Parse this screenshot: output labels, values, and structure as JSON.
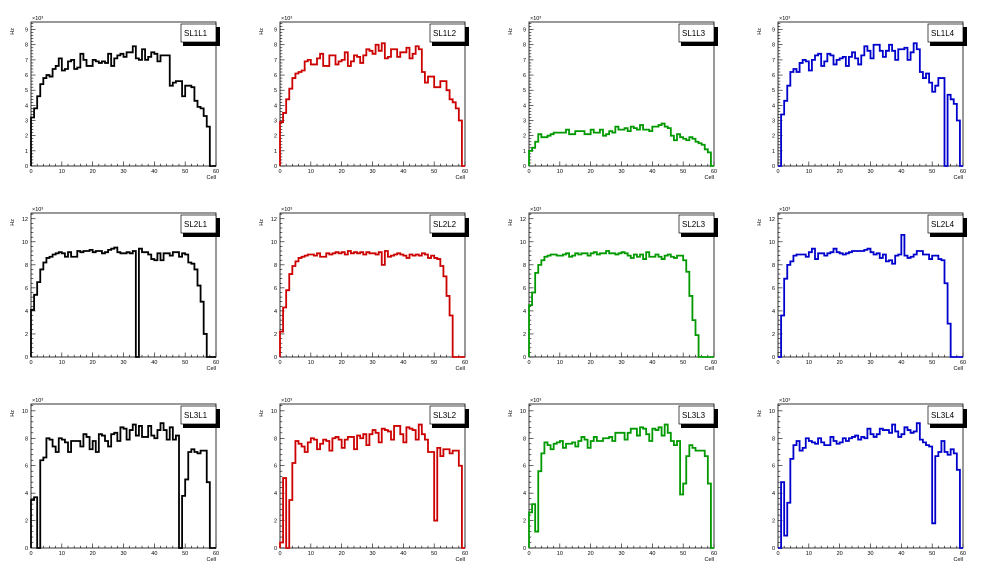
{
  "chart_data": [
    {
      "type": "bar",
      "title": "SL1L1",
      "color": "#000000",
      "xlabel": "Cell",
      "ylabel": "Hz",
      "exponent": "×10³",
      "xlim": [
        0,
        60
      ],
      "ylim": [
        0,
        9.5
      ],
      "xticks": [
        "0",
        "10",
        "20",
        "30",
        "40",
        "50",
        "60"
      ],
      "yticks": [
        "0",
        "1",
        "2",
        "3",
        "4",
        "5",
        "6",
        "7",
        "8",
        "9"
      ],
      "values": [
        3.2,
        3.8,
        4.6,
        5.4,
        5.8,
        6.0,
        5.9,
        6.4,
        6.6,
        7.1,
        6.3,
        6.4,
        6.9,
        7.0,
        6.4,
        6.5,
        7.4,
        7.0,
        6.6,
        6.6,
        7.0,
        6.9,
        6.8,
        6.9,
        6.8,
        7.4,
        6.6,
        7.1,
        7.3,
        7.4,
        7.2,
        7.5,
        7.5,
        7.9,
        7.1,
        7.0,
        7.7,
        7.0,
        7.2,
        7.5,
        7.4,
        6.9,
        7.3,
        7.3,
        7.3,
        5.3,
        5.5,
        5.6,
        5.6,
        4.6,
        5.3,
        5.3,
        5.2,
        4.3,
        3.9,
        3.8,
        3.3,
        2.6,
        0,
        0
      ]
    },
    {
      "type": "bar",
      "title": "SL1L2",
      "color": "#cc0000",
      "xlabel": "Cell",
      "ylabel": "Hz",
      "exponent": "×10³",
      "xlim": [
        0,
        60
      ],
      "ylim": [
        0,
        9.5
      ],
      "xticks": [
        "0",
        "10",
        "20",
        "30",
        "40",
        "50",
        "60"
      ],
      "yticks": [
        "0",
        "1",
        "2",
        "3",
        "4",
        "5",
        "6",
        "7",
        "8",
        "9"
      ],
      "values": [
        2.9,
        3.5,
        4.4,
        5.1,
        5.8,
        6.1,
        6.2,
        6.3,
        6.9,
        7.0,
        6.7,
        6.7,
        7.1,
        7.4,
        6.6,
        6.6,
        7.3,
        7.3,
        6.7,
        6.9,
        7.0,
        7.5,
        6.6,
        6.9,
        7.3,
        7.2,
        6.8,
        7.3,
        7.7,
        7.6,
        7.4,
        8.0,
        7.6,
        8.1,
        7.1,
        7.2,
        7.7,
        7.7,
        7.2,
        7.5,
        7.5,
        7.8,
        7.1,
        7.4,
        7.9,
        7.7,
        6.2,
        5.5,
        5.9,
        5.9,
        5.2,
        5.2,
        5.6,
        5.6,
        5.0,
        4.4,
        4.2,
        3.8,
        3.0,
        0
      ]
    },
    {
      "type": "bar",
      "title": "SL1L3",
      "color": "#009900",
      "xlabel": "Cell",
      "ylabel": "Hz",
      "exponent": "×10³",
      "xlim": [
        0,
        60
      ],
      "ylim": [
        0,
        9.5
      ],
      "xticks": [
        "0",
        "10",
        "20",
        "30",
        "40",
        "50",
        "60"
      ],
      "yticks": [
        "0",
        "1",
        "2",
        "3",
        "4",
        "5",
        "6",
        "7",
        "8",
        "9"
      ],
      "values": [
        1.0,
        1.2,
        1.6,
        2.1,
        1.9,
        1.9,
        2.0,
        2.1,
        2.2,
        2.2,
        2.2,
        2.2,
        2.4,
        2.1,
        2.1,
        2.3,
        2.3,
        2.3,
        2.1,
        2.1,
        2.4,
        2.2,
        2.2,
        2.4,
        2.0,
        2.1,
        2.3,
        2.2,
        2.6,
        2.4,
        2.4,
        2.5,
        2.3,
        2.6,
        2.5,
        2.4,
        2.7,
        2.4,
        2.4,
        2.3,
        2.6,
        2.6,
        2.7,
        2.8,
        2.6,
        2.5,
        2.0,
        1.7,
        2.1,
        1.9,
        1.8,
        1.7,
        1.9,
        1.8,
        1.6,
        1.5,
        1.4,
        1.1,
        0.9,
        0
      ]
    },
    {
      "type": "bar",
      "title": "SL1L4",
      "color": "#0000cc",
      "xlabel": "Cell",
      "ylabel": "Hz",
      "exponent": "×10³",
      "xlim": [
        0,
        60
      ],
      "ylim": [
        0,
        9.5
      ],
      "xticks": [
        "0",
        "10",
        "20",
        "30",
        "40",
        "50",
        "60"
      ],
      "yticks": [
        "0",
        "1",
        "2",
        "3",
        "4",
        "5",
        "6",
        "7",
        "8",
        "9"
      ],
      "values": [
        0,
        3.4,
        4.3,
        5.3,
        6.2,
        6.4,
        6.2,
        6.8,
        7.0,
        6.9,
        6.3,
        7.0,
        7.3,
        7.4,
        6.6,
        6.9,
        7.4,
        7.3,
        6.7,
        7.0,
        7.1,
        7.2,
        6.6,
        7.2,
        7.5,
        7.1,
        6.7,
        7.3,
        7.9,
        7.6,
        7.1,
        8.0,
        8.0,
        7.6,
        7.2,
        7.6,
        8.0,
        7.6,
        7.0,
        7.7,
        7.7,
        7.8,
        7.0,
        7.5,
        8.1,
        7.7,
        6.2,
        5.8,
        6.1,
        5.5,
        4.9,
        5.3,
        5.8,
        5.8,
        0,
        4.7,
        4.4,
        4.1,
        3.0,
        0
      ]
    },
    {
      "type": "bar",
      "title": "SL2L1",
      "color": "#000000",
      "xlabel": "Cell",
      "ylabel": "Hz",
      "exponent": "×10³",
      "xlim": [
        0,
        60
      ],
      "ylim": [
        0,
        12.5
      ],
      "xticks": [
        "0",
        "10",
        "20",
        "30",
        "40",
        "50",
        "60"
      ],
      "yticks": [
        "0",
        "2",
        "4",
        "6",
        "8",
        "10",
        "12"
      ],
      "values": [
        4.1,
        5.4,
        6.5,
        7.6,
        8.2,
        8.6,
        8.7,
        8.9,
        9.0,
        9.1,
        9.0,
        8.7,
        9.1,
        8.7,
        8.7,
        9.2,
        9.1,
        9.2,
        9.2,
        9.3,
        9.1,
        9.2,
        9.2,
        9.0,
        9.1,
        9.3,
        9.4,
        9.5,
        9.1,
        9.0,
        9.0,
        9.1,
        9.0,
        9.2,
        0,
        9.4,
        9.1,
        9.1,
        8.9,
        8.5,
        8.4,
        9.0,
        8.4,
        9.0,
        9.0,
        8.8,
        9.1,
        9.1,
        8.7,
        9.0,
        8.9,
        8.2,
        8.1,
        7.6,
        6.2,
        4.8,
        2.0,
        0,
        0,
        0
      ]
    },
    {
      "type": "bar",
      "title": "SL2L2",
      "color": "#cc0000",
      "xlabel": "Cell",
      "ylabel": "Hz",
      "exponent": "×10³",
      "xlim": [
        0,
        60
      ],
      "ylim": [
        0,
        12.5
      ],
      "xticks": [
        "0",
        "10",
        "20",
        "30",
        "40",
        "50",
        "60"
      ],
      "yticks": [
        "0",
        "2",
        "4",
        "6",
        "8",
        "10",
        "12"
      ],
      "values": [
        2.2,
        4.3,
        5.8,
        7.2,
        7.9,
        8.3,
        8.6,
        8.7,
        8.8,
        8.9,
        8.9,
        8.8,
        9.0,
        8.7,
        8.7,
        9.0,
        8.9,
        9.0,
        9.1,
        9.0,
        9.1,
        8.9,
        9.2,
        9.0,
        9.1,
        9.0,
        9.1,
        8.9,
        9.1,
        9.0,
        9.0,
        8.9,
        9.1,
        8.0,
        9.2,
        8.7,
        8.8,
        8.9,
        9.0,
        8.9,
        8.8,
        8.6,
        8.9,
        8.8,
        8.9,
        8.8,
        9.0,
        8.9,
        8.6,
        8.8,
        8.6,
        8.5,
        7.9,
        7.0,
        5.3,
        3.6,
        0,
        0,
        0,
        0
      ]
    },
    {
      "type": "bar",
      "title": "SL2L3",
      "color": "#009900",
      "xlabel": "Cell",
      "ylabel": "Hz",
      "exponent": "×10³",
      "xlim": [
        0,
        60
      ],
      "ylim": [
        0,
        12.5
      ],
      "xticks": [
        "0",
        "10",
        "20",
        "30",
        "40",
        "50",
        "60"
      ],
      "yticks": [
        "0",
        "2",
        "4",
        "6",
        "8",
        "10",
        "12"
      ],
      "values": [
        4.5,
        5.6,
        7.3,
        8.0,
        8.4,
        8.7,
        8.8,
        8.9,
        8.9,
        8.8,
        8.8,
        8.9,
        9.0,
        8.7,
        8.8,
        9.0,
        8.9,
        9.0,
        9.0,
        8.8,
        9.0,
        9.1,
        8.9,
        9.0,
        9.0,
        9.2,
        9.0,
        9.0,
        8.9,
        9.0,
        9.1,
        9.0,
        8.8,
        8.6,
        8.9,
        8.7,
        8.9,
        8.5,
        9.1,
        8.7,
        8.7,
        8.9,
        8.7,
        8.5,
        8.8,
        8.9,
        8.7,
        8.6,
        8.8,
        8.8,
        8.4,
        7.4,
        5.3,
        3.2,
        1.9,
        0,
        0,
        0,
        0,
        0
      ]
    },
    {
      "type": "bar",
      "title": "SL2L4",
      "color": "#0000cc",
      "xlabel": "Cell",
      "ylabel": "Hz",
      "exponent": "×10³",
      "xlim": [
        0,
        60
      ],
      "ylim": [
        0,
        12.5
      ],
      "xticks": [
        "0",
        "10",
        "20",
        "30",
        "40",
        "50",
        "60"
      ],
      "yticks": [
        "0",
        "2",
        "4",
        "6",
        "8",
        "10",
        "12"
      ],
      "values": [
        0,
        3.6,
        6.8,
        8.0,
        8.3,
        8.8,
        8.9,
        8.9,
        8.9,
        8.7,
        9.1,
        9.4,
        8.5,
        9.0,
        9.0,
        8.8,
        9.0,
        9.1,
        9.4,
        9.1,
        9.0,
        8.9,
        9.0,
        9.1,
        9.2,
        9.2,
        9.2,
        9.2,
        9.3,
        9.4,
        9.1,
        8.9,
        9.0,
        8.6,
        8.9,
        8.3,
        8.4,
        8.1,
        8.8,
        8.9,
        10.6,
        8.8,
        8.6,
        8.7,
        8.9,
        9.2,
        9.2,
        8.9,
        8.9,
        8.5,
        8.8,
        8.8,
        8.5,
        8.4,
        6.4,
        2.9,
        0,
        0,
        0,
        0
      ]
    },
    {
      "type": "bar",
      "title": "SL3L1",
      "color": "#000000",
      "xlabel": "Cell",
      "ylabel": "Hz",
      "exponent": "×10³",
      "xlim": [
        0,
        60
      ],
      "ylim": [
        0,
        10.5
      ],
      "xticks": [
        "0",
        "10",
        "20",
        "30",
        "40",
        "50",
        "60"
      ],
      "yticks": [
        "0",
        "2",
        "4",
        "6",
        "8",
        "10"
      ],
      "values": [
        3.5,
        3.7,
        0,
        6.4,
        6.6,
        8.0,
        7.9,
        7.4,
        7.0,
        8.0,
        7.9,
        7.7,
        7.0,
        7.8,
        7.8,
        7.8,
        7.4,
        8.3,
        8.1,
        7.2,
        7.8,
        7.0,
        8.3,
        8.2,
        7.8,
        7.4,
        8.3,
        8.4,
        7.8,
        8.8,
        8.7,
        7.9,
        8.6,
        9.0,
        8.2,
        8.9,
        8.1,
        8.1,
        8.9,
        8.2,
        8.0,
        8.6,
        9.1,
        8.6,
        7.9,
        8.8,
        7.9,
        8.2,
        0,
        3.8,
        5.0,
        7.0,
        7.2,
        7.0,
        6.9,
        7.1,
        7.1,
        4.8,
        0,
        0
      ]
    },
    {
      "type": "bar",
      "title": "SL3L2",
      "color": "#cc0000",
      "xlabel": "Cell",
      "ylabel": "Hz",
      "exponent": "×10³",
      "xlim": [
        0,
        60
      ],
      "ylim": [
        0,
        10.5
      ],
      "xticks": [
        "0",
        "10",
        "20",
        "30",
        "40",
        "50",
        "60"
      ],
      "yticks": [
        "0",
        "2",
        "4",
        "6",
        "8",
        "10"
      ],
      "values": [
        0.4,
        5.1,
        0,
        3.5,
        6.2,
        7.8,
        7.6,
        7.4,
        7.0,
        7.7,
        8.0,
        7.9,
        7.2,
        7.6,
        7.9,
        7.8,
        7.1,
        8.0,
        8.1,
        7.9,
        7.3,
        7.9,
        8.1,
        8.1,
        7.2,
        8.2,
        8.0,
        8.3,
        7.5,
        8.3,
        8.6,
        8.4,
        7.7,
        8.7,
        8.6,
        8.5,
        7.9,
        8.9,
        8.9,
        8.3,
        7.7,
        8.8,
        8.7,
        8.6,
        7.9,
        9.0,
        8.3,
        7.9,
        7.0,
        7.0,
        2.0,
        7.3,
        6.7,
        7.2,
        7.2,
        6.9,
        7.1,
        7.1,
        6.0,
        0
      ]
    },
    {
      "type": "bar",
      "title": "SL3L3",
      "color": "#009900",
      "xlabel": "Cell",
      "ylabel": "Hz",
      "exponent": "×10³",
      "xlim": [
        0,
        60
      ],
      "ylim": [
        0,
        10.5
      ],
      "xticks": [
        "0",
        "10",
        "20",
        "30",
        "40",
        "50",
        "60"
      ],
      "yticks": [
        "0",
        "2",
        "4",
        "6",
        "8",
        "10"
      ],
      "values": [
        2.6,
        3.2,
        1.2,
        5.6,
        6.9,
        7.7,
        7.5,
        7.2,
        7.6,
        7.7,
        7.8,
        7.3,
        7.6,
        7.6,
        7.7,
        7.4,
        7.8,
        8.1,
        7.9,
        7.3,
        7.8,
        8.1,
        7.8,
        7.8,
        8.0,
        8.0,
        8.1,
        7.8,
        8.4,
        8.4,
        8.4,
        7.9,
        8.4,
        8.7,
        8.7,
        8.2,
        8.8,
        8.7,
        8.3,
        7.8,
        8.7,
        8.6,
        8.8,
        8.2,
        9.0,
        8.4,
        7.8,
        7.5,
        7.8,
        3.9,
        4.7,
        6.7,
        7.5,
        7.3,
        7.1,
        7.1,
        7.1,
        6.7,
        4.7,
        0
      ]
    },
    {
      "type": "bar",
      "title": "SL3L4",
      "color": "#0000cc",
      "xlabel": "Cell",
      "ylabel": "Hz",
      "exponent": "×10³",
      "xlim": [
        0,
        60
      ],
      "ylim": [
        0,
        10.5
      ],
      "xticks": [
        "0",
        "10",
        "20",
        "30",
        "40",
        "50",
        "60"
      ],
      "yticks": [
        "0",
        "2",
        "4",
        "6",
        "8",
        "10"
      ],
      "values": [
        0,
        4.8,
        0.9,
        3.3,
        6.5,
        7.5,
        7.8,
        7.1,
        7.3,
        8.0,
        7.8,
        7.7,
        7.6,
        8.0,
        7.7,
        7.5,
        7.5,
        8.1,
        7.8,
        7.6,
        7.7,
        8.0,
        7.8,
        8.0,
        8.1,
        8.2,
        7.9,
        8.1,
        8.0,
        8.7,
        8.3,
        8.1,
        8.3,
        8.7,
        8.6,
        8.6,
        8.4,
        9.0,
        8.5,
        8.1,
        8.3,
        8.8,
        8.6,
        8.4,
        8.5,
        9.1,
        7.9,
        7.7,
        7.5,
        7.4,
        1.8,
        6.7,
        7.0,
        7.8,
        7.0,
        6.8,
        7.2,
        6.9,
        5.7,
        0
      ]
    }
  ]
}
